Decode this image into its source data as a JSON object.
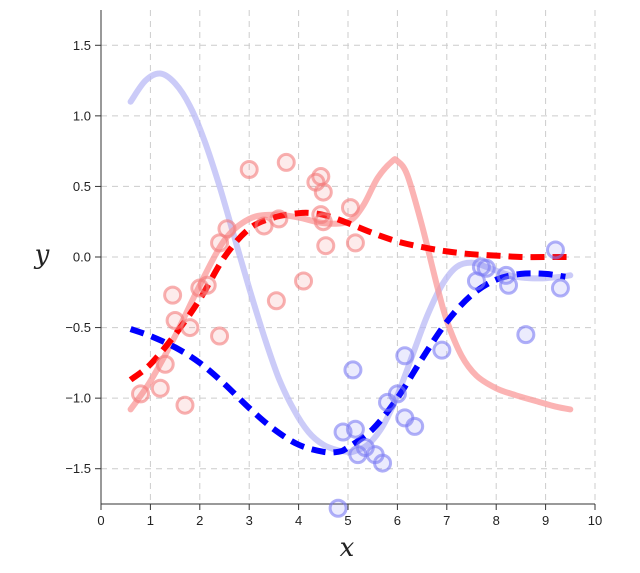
{
  "chart_data": {
    "type": "scatter",
    "title": "",
    "xlabel": "x",
    "ylabel": "y",
    "xlim": [
      0,
      10
    ],
    "ylim": [
      -1.75,
      1.75
    ],
    "x_ticks": [
      0,
      1,
      2,
      3,
      4,
      5,
      6,
      7,
      8,
      9,
      10
    ],
    "y_ticks": [
      -1.5,
      -1.0,
      -0.5,
      0.0,
      0.5,
      1.0,
      1.5
    ],
    "x_tick_labels": [
      "0",
      "1",
      "2",
      "3",
      "4",
      "5",
      "6",
      "7",
      "8",
      "9",
      "10"
    ],
    "y_tick_labels": [
      "−1.5",
      "−1.0",
      "−0.5",
      "0.0",
      "0.5",
      "1.0",
      "1.5"
    ],
    "grid": true,
    "legend": "none",
    "colors": {
      "red_points": "#f47b7b",
      "blue_points": "#7b7bf4",
      "red_dashed": "#ff0000",
      "blue_dashed": "#0000ff",
      "red_solid": "#fa9a9a",
      "blue_solid": "#b9b9f5"
    },
    "scatter_series": [
      {
        "color_key": "red_points",
        "points": [
          [
            0.8,
            -0.97
          ],
          [
            1.2,
            -0.93
          ],
          [
            1.3,
            -0.76
          ],
          [
            1.45,
            -0.27
          ],
          [
            1.5,
            -0.45
          ],
          [
            1.7,
            -1.05
          ],
          [
            1.8,
            -0.5
          ],
          [
            2.0,
            -0.22
          ],
          [
            2.15,
            -0.2
          ],
          [
            2.4,
            -0.56
          ],
          [
            2.4,
            0.1
          ],
          [
            2.55,
            0.2
          ],
          [
            3.0,
            0.62
          ],
          [
            3.3,
            0.22
          ],
          [
            3.55,
            -0.31
          ],
          [
            3.6,
            0.27
          ],
          [
            3.75,
            0.67
          ],
          [
            4.1,
            -0.17
          ],
          [
            4.35,
            0.53
          ],
          [
            4.45,
            0.57
          ],
          [
            4.45,
            0.3
          ],
          [
            4.5,
            0.46
          ],
          [
            4.5,
            0.25
          ],
          [
            4.55,
            0.08
          ],
          [
            5.05,
            0.35
          ],
          [
            5.15,
            0.1
          ]
        ]
      },
      {
        "color_key": "blue_points",
        "points": [
          [
            4.8,
            -1.78
          ],
          [
            4.9,
            -1.24
          ],
          [
            5.1,
            -0.8
          ],
          [
            5.15,
            -1.22
          ],
          [
            5.2,
            -1.4
          ],
          [
            5.35,
            -1.35
          ],
          [
            5.55,
            -1.4
          ],
          [
            5.7,
            -1.46
          ],
          [
            5.8,
            -1.03
          ],
          [
            6.0,
            -0.97
          ],
          [
            6.15,
            -0.7
          ],
          [
            6.15,
            -1.14
          ],
          [
            6.35,
            -1.2
          ],
          [
            6.9,
            -0.66
          ],
          [
            7.6,
            -0.17
          ],
          [
            7.7,
            -0.07
          ],
          [
            7.8,
            -0.08
          ],
          [
            8.2,
            -0.13
          ],
          [
            8.25,
            -0.2
          ],
          [
            8.6,
            -0.55
          ],
          [
            9.2,
            0.05
          ],
          [
            9.3,
            -0.22
          ]
        ]
      }
    ],
    "line_series": [
      {
        "style": "solid",
        "color_key": "blue_solid",
        "x": [
          0.6,
          0.9,
          1.2,
          1.5,
          1.8,
          2.1,
          2.4,
          2.7,
          3.0,
          3.3,
          3.6,
          3.9,
          4.2,
          4.5,
          4.8,
          5.0,
          5.1,
          5.4,
          5.7,
          6.0,
          6.3,
          6.6,
          6.9,
          7.2,
          7.5,
          7.8,
          8.1,
          8.4,
          8.7,
          9.0,
          9.3,
          9.5
        ],
        "y": [
          1.1,
          1.25,
          1.3,
          1.23,
          1.07,
          0.82,
          0.5,
          0.14,
          -0.22,
          -0.56,
          -0.86,
          -1.08,
          -1.24,
          -1.33,
          -1.37,
          -1.38,
          -1.38,
          -1.33,
          -1.2,
          -0.98,
          -0.7,
          -0.42,
          -0.2,
          -0.07,
          -0.04,
          -0.07,
          -0.11,
          -0.14,
          -0.15,
          -0.15,
          -0.14,
          -0.13
        ]
      },
      {
        "style": "solid",
        "color_key": "red_solid",
        "x": [
          0.6,
          1.0,
          1.5,
          2.0,
          2.5,
          3.0,
          3.5,
          4.0,
          4.5,
          5.0,
          5.3,
          5.6,
          5.9,
          6.0,
          6.2,
          6.5,
          6.8,
          7.0,
          7.3,
          7.6,
          8.0,
          8.4,
          8.8,
          9.2,
          9.5
        ],
        "y": [
          -1.08,
          -0.88,
          -0.56,
          -0.2,
          0.12,
          0.27,
          0.3,
          0.28,
          0.24,
          0.25,
          0.36,
          0.56,
          0.68,
          0.68,
          0.58,
          0.22,
          -0.2,
          -0.45,
          -0.7,
          -0.84,
          -0.93,
          -0.98,
          -1.02,
          -1.06,
          -1.08
        ]
      },
      {
        "style": "dashed",
        "color_key": "red_dashed",
        "x": [
          0.6,
          1.0,
          1.5,
          2.0,
          2.5,
          3.0,
          3.5,
          4.0,
          4.3,
          4.6,
          5.0,
          5.5,
          6.0,
          6.5,
          7.0,
          7.5,
          8.0,
          8.5,
          9.0,
          9.5
        ],
        "y": [
          -0.87,
          -0.76,
          -0.55,
          -0.3,
          0.0,
          0.2,
          0.28,
          0.31,
          0.31,
          0.29,
          0.24,
          0.17,
          0.11,
          0.07,
          0.04,
          0.02,
          0.01,
          0.0,
          0.0,
          0.0
        ]
      },
      {
        "style": "dashed",
        "color_key": "blue_dashed",
        "x": [
          0.6,
          1.0,
          1.5,
          2.0,
          2.5,
          3.0,
          3.5,
          4.0,
          4.5,
          4.8,
          5.0,
          5.5,
          6.0,
          6.5,
          7.0,
          7.5,
          8.0,
          8.5,
          9.0,
          9.4
        ],
        "y": [
          -0.51,
          -0.56,
          -0.64,
          -0.75,
          -0.9,
          -1.07,
          -1.22,
          -1.33,
          -1.38,
          -1.38,
          -1.35,
          -1.22,
          -1.0,
          -0.72,
          -0.46,
          -0.27,
          -0.16,
          -0.12,
          -0.12,
          -0.14
        ]
      }
    ]
  }
}
